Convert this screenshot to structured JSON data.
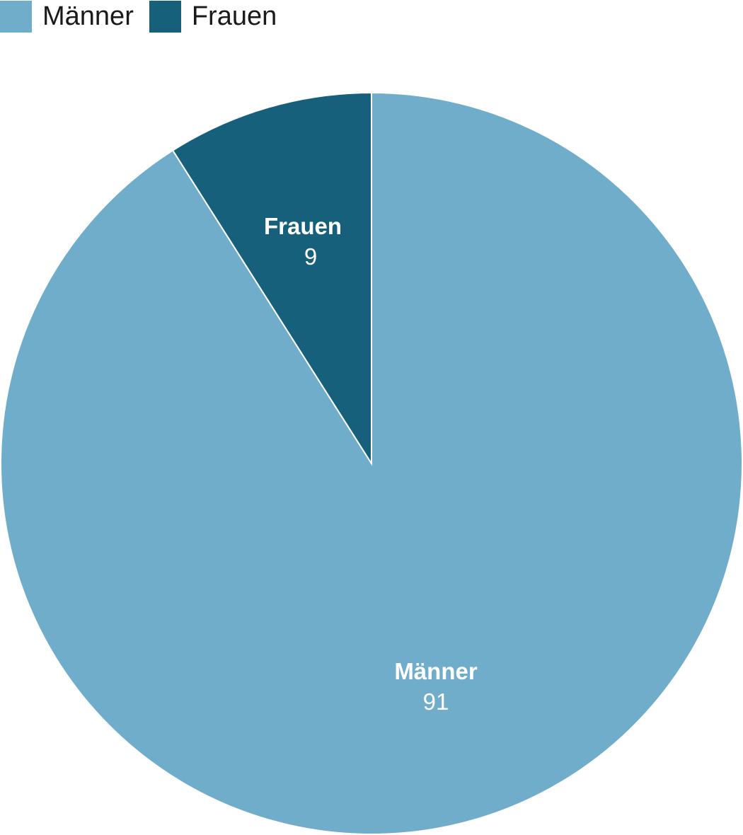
{
  "chart_data": {
    "type": "pie",
    "categories": [
      "Männer",
      "Frauen"
    ],
    "values": [
      91,
      9
    ],
    "colors": [
      "#6fadca",
      "#17607b"
    ],
    "legend": "top-left",
    "start_angle": "12 o'clock, clockwise"
  },
  "legend": {
    "items": [
      {
        "label": "Männer",
        "color": "#6fadca"
      },
      {
        "label": "Frauen",
        "color": "#17607b"
      }
    ]
  },
  "labels": [
    {
      "name": "Männer",
      "value": "91"
    },
    {
      "name": "Frauen",
      "value": "9"
    }
  ]
}
